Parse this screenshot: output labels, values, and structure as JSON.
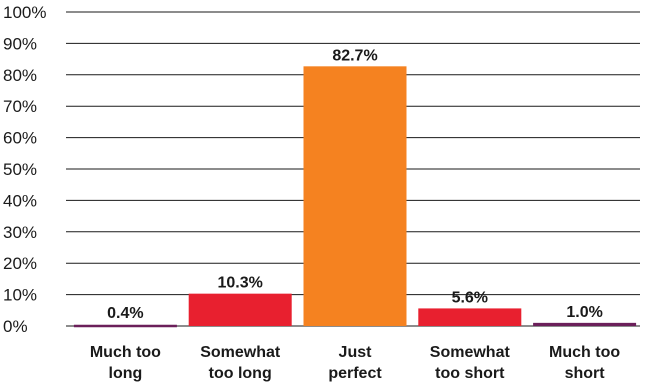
{
  "chart_data": {
    "type": "bar",
    "title": "",
    "xlabel": "",
    "ylabel": "",
    "ylim": [
      0,
      100
    ],
    "y_tick_step": 10,
    "y_tick_suffix": "%",
    "grid": true,
    "categories": [
      [
        "Much too",
        "long"
      ],
      [
        "Somewhat",
        "too long"
      ],
      [
        "Just",
        "perfect"
      ],
      [
        "Somewhat",
        "too short"
      ],
      [
        "Much too",
        "short"
      ]
    ],
    "values": [
      0.4,
      10.3,
      82.7,
      5.6,
      1.0
    ],
    "data_labels": [
      "0.4%",
      "10.3%",
      "82.7%",
      "5.6%",
      "1.0%"
    ],
    "colors": [
      "#6b1f5a",
      "#e8202f",
      "#f58220",
      "#e8202f",
      "#6b1f5a"
    ]
  }
}
